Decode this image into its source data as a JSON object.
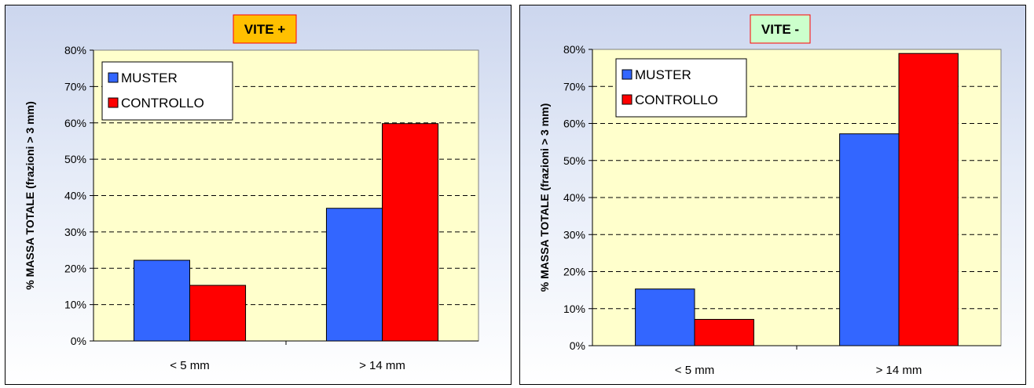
{
  "chart_data": [
    {
      "type": "bar",
      "title": "VITE +",
      "title_bg": "#ffc000",
      "ylabel": "% MASSA TOTALE (frazioni > 3 mm)",
      "xlabel": "",
      "categories": [
        "< 5 mm",
        "> 14 mm"
      ],
      "series": [
        {
          "name": "MUSTER",
          "color": "#3366ff",
          "values": [
            0.222,
            0.365
          ]
        },
        {
          "name": "CONTROLLO",
          "color": "#ff0000",
          "values": [
            0.153,
            0.598
          ]
        }
      ],
      "ylim": [
        0,
        0.8
      ],
      "yticks": [
        "0%",
        "10%",
        "20%",
        "30%",
        "40%",
        "50%",
        "60%",
        "70%",
        "80%"
      ],
      "grid": true,
      "legend": "top-left",
      "plot_bg": "#ffffcc"
    },
    {
      "type": "bar",
      "title": "VITE -",
      "title_bg": "#ccffcc",
      "ylabel": "% MASSA TOTALE (frazioni > 3 mm)",
      "xlabel": "",
      "categories": [
        "< 5 mm",
        "> 14 mm"
      ],
      "series": [
        {
          "name": "MUSTER",
          "color": "#3366ff",
          "values": [
            0.153,
            0.572
          ]
        },
        {
          "name": "CONTROLLO",
          "color": "#ff0000",
          "values": [
            0.071,
            0.789
          ]
        }
      ],
      "ylim": [
        0,
        0.8
      ],
      "yticks": [
        "0%",
        "10%",
        "20%",
        "30%",
        "40%",
        "50%",
        "60%",
        "70%",
        "80%"
      ],
      "grid": true,
      "legend": "top-left",
      "plot_bg": "#ffffcc"
    }
  ]
}
